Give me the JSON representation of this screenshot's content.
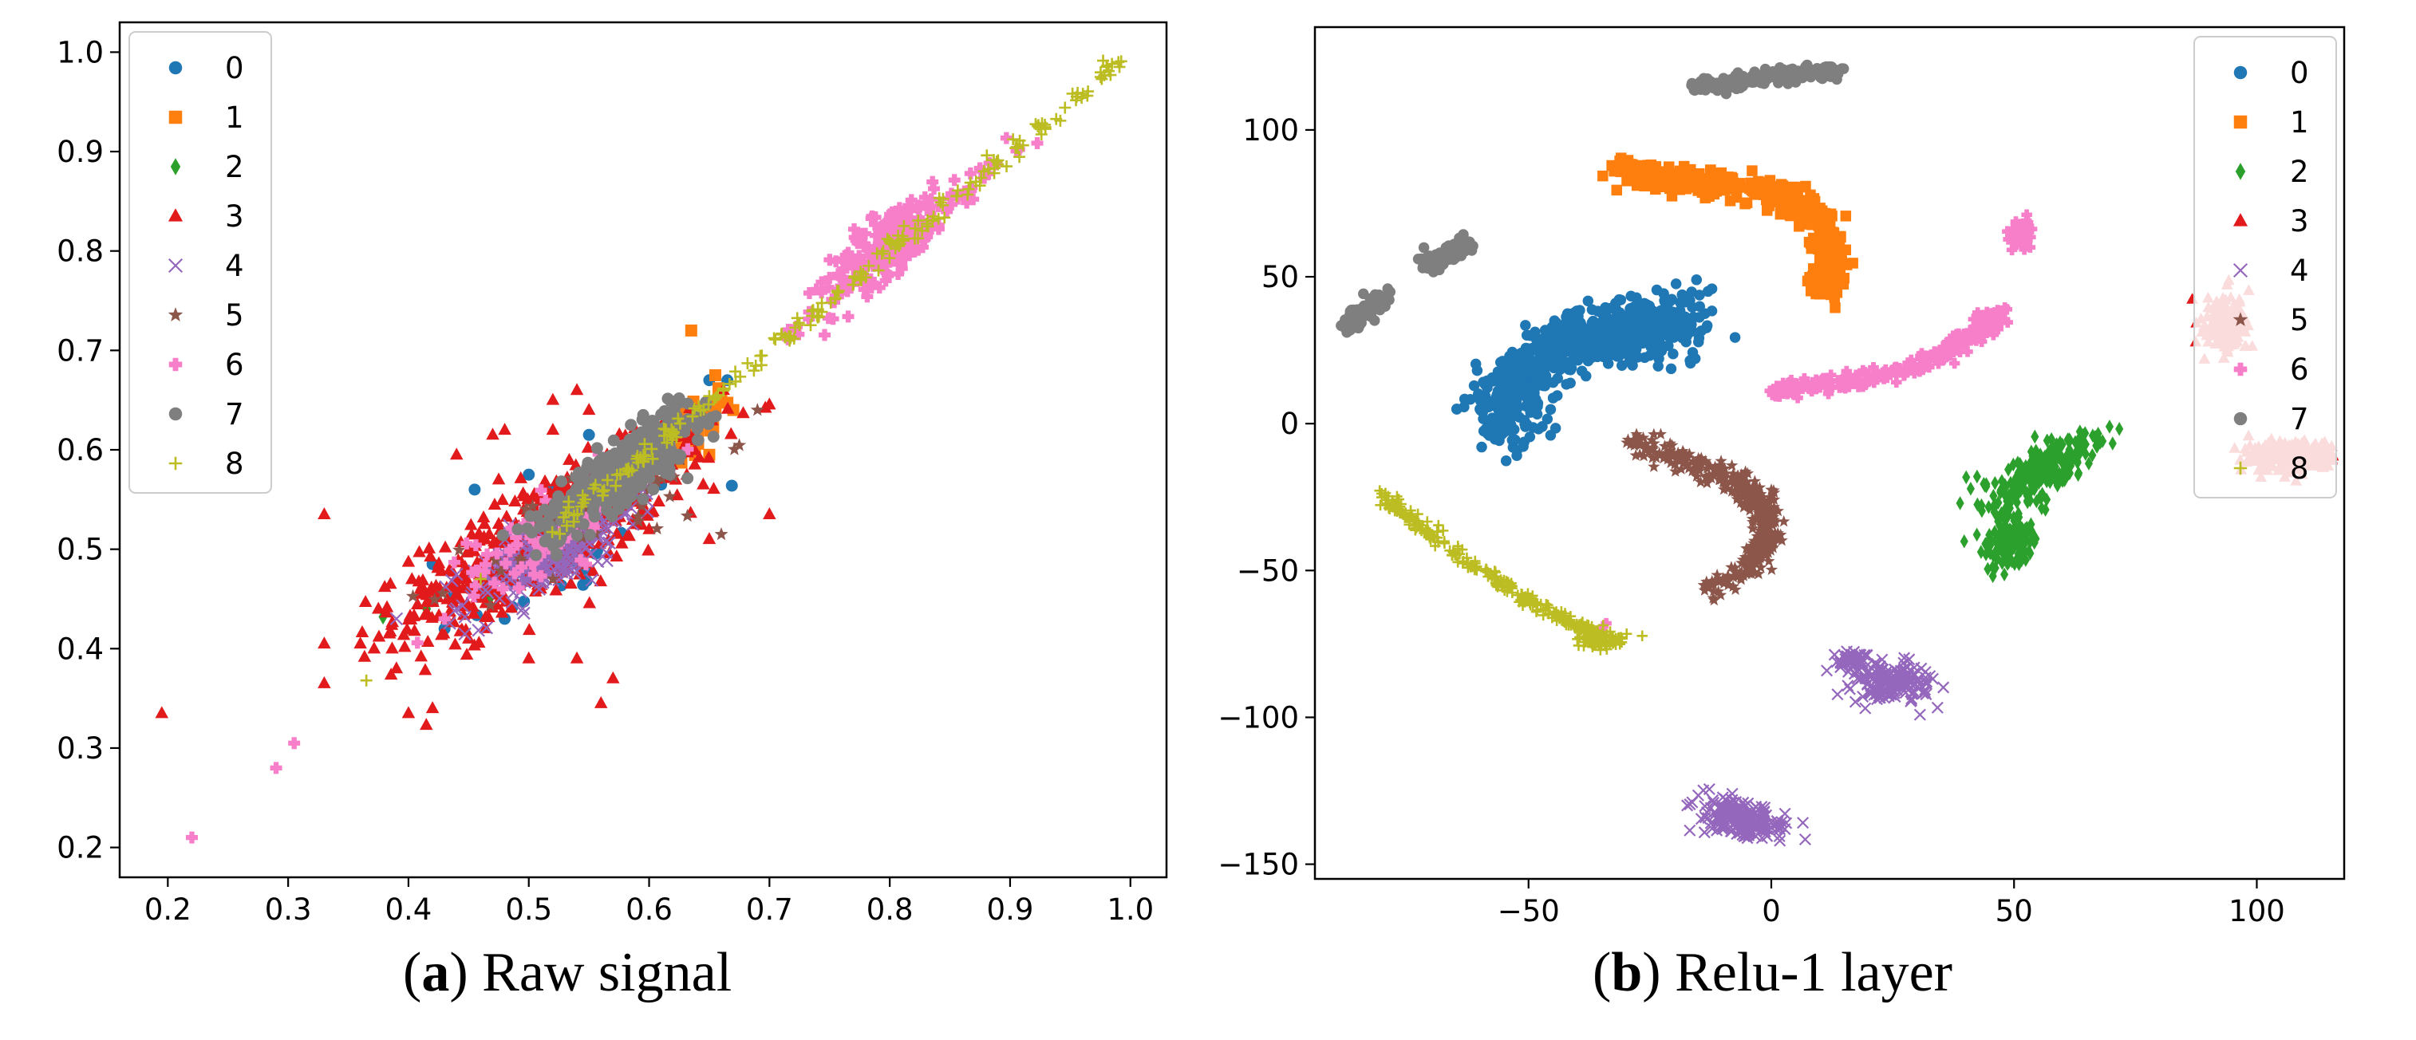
{
  "colors": {
    "0": "#1f77b4",
    "1": "#ff7f0e",
    "2": "#2ca02c",
    "3": "#e31a1c",
    "4": "#9467bd",
    "5": "#8c564b",
    "6": "#f77fc9",
    "7": "#7f7f7f",
    "8": "#bcbd22"
  },
  "captions": [
    {
      "letter": "a",
      "text": "Raw signal"
    },
    {
      "letter": "b",
      "text": "Relu-1 layer"
    }
  ],
  "chart_data": [
    {
      "type": "scatter",
      "title": "(a) Raw signal",
      "xlim": [
        0.16,
        1.03
      ],
      "ylim": [
        0.17,
        1.03
      ],
      "xticks": [
        0.2,
        0.3,
        0.4,
        0.5,
        0.6,
        0.7,
        0.8,
        0.9,
        1.0
      ],
      "yticks": [
        0.2,
        0.3,
        0.4,
        0.5,
        0.6,
        0.7,
        0.8,
        0.9,
        1.0
      ],
      "tick_labels_x": [
        "0.2",
        "0.3",
        "0.4",
        "0.5",
        "0.6",
        "0.7",
        "0.8",
        "0.9",
        "1.0"
      ],
      "tick_labels_y": [
        "0.2",
        "0.3",
        "0.4",
        "0.5",
        "0.6",
        "0.7",
        "0.8",
        "0.9",
        "1.0"
      ],
      "legend_position": "upper-left",
      "series": [
        {
          "name": "0",
          "marker": "circle",
          "clusters": [
            {
              "cx": 0.53,
              "cy": 0.5,
              "sx": 0.05,
              "sy": 0.04,
              "n": 40
            }
          ],
          "points": [
            [
              0.42,
              0.485
            ],
            [
              0.455,
              0.56
            ],
            [
              0.48,
              0.43
            ],
            [
              0.5,
              0.575
            ],
            [
              0.55,
              0.615
            ],
            [
              0.6,
              0.585
            ],
            [
              0.61,
              0.565
            ],
            [
              0.65,
              0.67
            ],
            [
              0.665,
              0.67
            ],
            [
              0.43,
              0.42
            ],
            [
              0.52,
              0.56
            ]
          ]
        },
        {
          "name": "1",
          "marker": "square",
          "clusters": [
            {
              "cx": 0.62,
              "cy": 0.61,
              "sx": 0.025,
              "sy": 0.025,
              "n": 55
            }
          ],
          "points": [
            [
              0.635,
              0.72
            ],
            [
              0.65,
              0.595
            ],
            [
              0.66,
              0.65
            ],
            [
              0.67,
              0.64
            ],
            [
              0.655,
              0.675
            ],
            [
              0.6,
              0.58
            ],
            [
              0.59,
              0.595
            ]
          ]
        },
        {
          "name": "2",
          "marker": "diamond",
          "clusters": [
            {
              "cx": 0.5,
              "cy": 0.5,
              "sx": 0.03,
              "sy": 0.025,
              "n": 25
            }
          ],
          "points": [
            [
              0.415,
              0.44
            ]
          ]
        },
        {
          "name": "3",
          "marker": "triangle",
          "clusters": [
            {
              "cx": 0.5,
              "cy": 0.5,
              "sx": 0.055,
              "sy": 0.045,
              "n": 450
            },
            {
              "cx": 0.58,
              "cy": 0.57,
              "sx": 0.04,
              "sy": 0.035,
              "n": 120
            }
          ],
          "points": [
            [
              0.195,
              0.335
            ],
            [
              0.33,
              0.535
            ],
            [
              0.33,
              0.405
            ],
            [
              0.33,
              0.365
            ],
            [
              0.36,
              0.405
            ],
            [
              0.39,
              0.38
            ],
            [
              0.4,
              0.335
            ],
            [
              0.42,
              0.34
            ],
            [
              0.41,
              0.46
            ],
            [
              0.385,
              0.465
            ],
            [
              0.375,
              0.44
            ],
            [
              0.45,
              0.41
            ],
            [
              0.44,
              0.595
            ],
            [
              0.47,
              0.615
            ],
            [
              0.475,
              0.57
            ],
            [
              0.56,
              0.345
            ],
            [
              0.54,
              0.39
            ],
            [
              0.5,
              0.39
            ],
            [
              0.52,
              0.62
            ],
            [
              0.52,
              0.65
            ],
            [
              0.55,
              0.64
            ],
            [
              0.54,
              0.66
            ],
            [
              0.6,
              0.52
            ],
            [
              0.65,
              0.51
            ],
            [
              0.7,
              0.535
            ],
            [
              0.645,
              0.565
            ],
            [
              0.57,
              0.37
            ],
            [
              0.48,
              0.62
            ]
          ]
        },
        {
          "name": "4",
          "marker": "x",
          "clusters": [
            {
              "cx": 0.52,
              "cy": 0.5,
              "sx": 0.035,
              "sy": 0.03,
              "n": 260
            }
          ],
          "points": [
            [
              0.39,
              0.43
            ],
            [
              0.44,
              0.44
            ]
          ]
        },
        {
          "name": "5",
          "marker": "star",
          "clusters": [
            {
              "cx": 0.56,
              "cy": 0.54,
              "sx": 0.05,
              "sy": 0.04,
              "n": 50
            }
          ],
          "points": [
            [
              0.69,
              0.64
            ],
            [
              0.66,
              0.515
            ],
            [
              0.6,
              0.58
            ],
            [
              0.52,
              0.47
            ]
          ]
        },
        {
          "name": "6",
          "marker": "plus-filled",
          "clusters": [
            {
              "cx": 0.8,
              "cy": 0.81,
              "sx": 0.025,
              "sy": 0.025,
              "n": 220
            },
            {
              "cx": 0.52,
              "cy": 0.52,
              "sx": 0.035,
              "sy": 0.03,
              "n": 80
            }
          ],
          "line": {
            "x0": 0.7,
            "y0": 0.7,
            "x1": 0.91,
            "y1": 0.91,
            "n": 60,
            "jitter": 0.008
          },
          "points": [
            [
              0.22,
              0.21
            ],
            [
              0.29,
              0.28
            ],
            [
              0.305,
              0.305
            ],
            [
              0.43,
              0.43
            ]
          ]
        },
        {
          "name": "7",
          "marker": "circle",
          "clusters": [
            {
              "cx": 0.58,
              "cy": 0.58,
              "sx": 0.025,
              "sy": 0.025,
              "n": 280
            }
          ],
          "line": {
            "x0": 0.5,
            "y0": 0.5,
            "x1": 0.65,
            "y1": 0.65,
            "n": 120,
            "jitter": 0.012
          },
          "points": []
        },
        {
          "name": "8",
          "marker": "plus",
          "clusters": [],
          "line": {
            "x0": 0.52,
            "y0": 0.52,
            "x1": 0.99,
            "y1": 0.99,
            "n": 210,
            "jitter": 0.004
          },
          "points": [
            [
              0.365,
              0.368
            ],
            [
              0.46,
              0.47
            ],
            [
              0.99,
              0.99
            ]
          ]
        }
      ]
    },
    {
      "type": "scatter",
      "title": "(b) Relu-1 layer",
      "xlim": [
        -94,
        118
      ],
      "ylim": [
        -155,
        135
      ],
      "xticks": [
        -50,
        0,
        50,
        100
      ],
      "yticks": [
        -150,
        -100,
        -50,
        0,
        50,
        100
      ],
      "tick_labels_x": [
        "−50",
        "0",
        "50",
        "100"
      ],
      "tick_labels_y": [
        "−150",
        "−100",
        "−50",
        "0",
        "50",
        "100"
      ],
      "legend_position": "upper-right",
      "series": [
        {
          "name": "0",
          "marker": "circle",
          "blobs": [],
          "curves": [
            {
              "pts": [
                [
                  -55,
                  -3
                ],
                [
                  -54,
                  10
                ],
                [
                  -48,
                  22
                ],
                [
                  -38,
                  29
                ],
                [
                  -25,
                  33
                ],
                [
                  -17,
                  34
                ]
              ],
              "width": 9,
              "n": 650
            }
          ],
          "points": []
        },
        {
          "name": "1",
          "marker": "square",
          "blobs": [],
          "curves": [
            {
              "pts": [
                [
                  -31,
                  87
                ],
                [
                  -20,
                  83
                ],
                [
                  -5,
                  80
                ],
                [
                  5,
                  76
                ],
                [
                  11,
                  66
                ],
                [
                  12,
                  56
                ],
                [
                  11,
                  45
                ]
              ],
              "width": 4,
              "n": 450
            }
          ],
          "points": []
        },
        {
          "name": "2",
          "marker": "diamond",
          "blobs": [
            {
              "cx": 56,
              "cy": -16,
              "sx": 3.3,
              "sy": 8,
              "rot": -0.7,
              "n": 240
            },
            {
              "cx": 49,
              "cy": -40,
              "sx": 2.5,
              "sy": 4.5,
              "rot": 0,
              "n": 150
            }
          ],
          "curves": [],
          "points": []
        },
        {
          "name": "3",
          "marker": "triangle",
          "blobs": [
            {
              "cx": 93,
              "cy": 33,
              "sx": 2.2,
              "sy": 4.8,
              "rot": 0,
              "n": 160
            },
            {
              "cx": 107,
              "cy": -11,
              "sx": 4.6,
              "sy": 2.8,
              "rot": 0,
              "n": 210
            }
          ],
          "curves": [],
          "points": []
        },
        {
          "name": "4",
          "marker": "x",
          "blobs": [
            {
              "cx": 25,
              "cy": -88,
              "sx": 4,
              "sy": 3.6,
              "rot": -0.5,
              "n": 160
            },
            {
              "cx": 17,
              "cy": -80,
              "sx": 2,
              "sy": 2,
              "rot": 0,
              "n": 40
            },
            {
              "cx": -6,
              "cy": -135,
              "sx": 4.4,
              "sy": 2.8,
              "rot": -0.5,
              "n": 200
            }
          ],
          "curves": [],
          "points": []
        },
        {
          "name": "5",
          "marker": "star",
          "blobs": [],
          "curves": [
            {
              "pts": [
                [
                  -29,
                  -6
                ],
                [
                  -17,
                  -13
                ],
                [
                  -7,
                  -20
                ],
                [
                  -2,
                  -28
                ],
                [
                  -1,
                  -38
                ],
                [
                  -4,
                  -47
                ],
                [
                  -13,
                  -57
                ]
              ],
              "width": 3.3,
              "n": 420
            }
          ],
          "points": []
        },
        {
          "name": "6",
          "marker": "plus-filled",
          "blobs": [
            {
              "cx": 51,
              "cy": 64,
              "sx": 1.3,
              "sy": 2.6,
              "rot": 0,
              "n": 40
            }
          ],
          "curves": [
            {
              "pts": [
                [
                  2,
                  12
                ],
                [
                  15,
                  14
                ],
                [
                  30,
                  20
                ],
                [
                  40,
                  28
                ],
                [
                  47,
                  37
                ]
              ],
              "width": 2.6,
              "n": 300
            }
          ],
          "points": [
            [
              -34,
              -68
            ],
            [
              -35,
              -70
            ]
          ]
        },
        {
          "name": "7",
          "marker": "circle",
          "blobs": [],
          "curves": [
            {
              "pts": [
                [
                  -16,
                  115
                ],
                [
                  -5,
                  117
                ],
                [
                  5,
                  119
                ],
                [
                  13,
                  120
                ]
              ],
              "width": 2.2,
              "n": 200
            },
            {
              "pts": [
                [
                  -87,
                  33
                ],
                [
                  -84,
                  38
                ],
                [
                  -80,
                  43
                ]
              ],
              "width": 2.6,
              "n": 90
            },
            {
              "pts": [
                [
                  -71,
                  54
                ],
                [
                  -67,
                  58
                ],
                [
                  -62,
                  62
                ]
              ],
              "width": 2.5,
              "n": 90
            }
          ],
          "points": []
        },
        {
          "name": "8",
          "marker": "plus",
          "blobs": [
            {
              "cx": -35,
              "cy": -74,
              "sx": 3,
              "sy": 1.5,
              "rot": 0,
              "n": 60
            }
          ],
          "curves": [
            {
              "pts": [
                [
                  -80,
                  -25
                ],
                [
                  -70,
                  -38
                ],
                [
                  -55,
                  -55
                ],
                [
                  -42,
                  -67
                ],
                [
                  -34,
                  -73
                ]
              ],
              "width": 1.8,
              "n": 260
            }
          ],
          "points": []
        }
      ]
    }
  ]
}
